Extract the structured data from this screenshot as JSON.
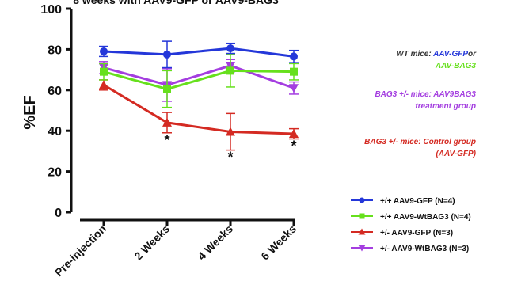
{
  "chart_data": {
    "type": "line",
    "title": "8 weeks with AAV9-GFP or AAV9-BAG3",
    "ylabel": "%EF",
    "xlabel": "",
    "ylim": [
      0,
      100
    ],
    "yticks": [
      0,
      20,
      40,
      60,
      80,
      100
    ],
    "categories": [
      "Pre-injection",
      "2 Weeks",
      "4 Weeks",
      "6 Weeks"
    ],
    "grid": false,
    "legend_position": "bottom-right",
    "series": [
      {
        "name": "+/+ AAV9-GFP (N=4)",
        "color": "#2437d9",
        "marker": "circle",
        "values": [
          79,
          77.5,
          80.5,
          76.5
        ],
        "errors": [
          2.5,
          6.5,
          2.5,
          3
        ]
      },
      {
        "name": "+/+ AAV9-WtBAG3 (N=4)",
        "color": "#66e01c",
        "marker": "square",
        "values": [
          69,
          60.5,
          69.5,
          69
        ],
        "errors": [
          4,
          9,
          8,
          4
        ]
      },
      {
        "name": "+/- AAV9-GFP (N=3)",
        "color": "#d42a22",
        "marker": "triangle-up",
        "values": [
          62.5,
          44,
          39.5,
          38.5
        ],
        "errors": [
          2.5,
          5,
          9,
          2.5
        ]
      },
      {
        "name": "+/- AAV9-WtBAG3 (N=3)",
        "color": "#a43ee0",
        "marker": "triangle-down",
        "values": [
          71,
          62.5,
          72,
          61
        ],
        "errors": [
          3,
          8,
          3,
          3
        ]
      }
    ],
    "significance_markers": [
      "",
      "*",
      "*",
      "*"
    ],
    "annotations": [
      {
        "lines": [
          [
            {
              "text": "WT mice: ",
              "color": "#333333"
            },
            {
              "text": "AAV-GFP",
              "color": "#2437d9"
            },
            {
              "text": "or",
              "color": "#333333"
            }
          ],
          [
            {
              "text": "AAV-BAG3",
              "color": "#66e01c"
            }
          ]
        ]
      },
      {
        "lines": [
          [
            {
              "text": "BAG3 +/- mice: AAV9BAG3",
              "color": "#a43ee0"
            }
          ],
          [
            {
              "text": "treatment group",
              "color": "#a43ee0"
            }
          ]
        ]
      },
      {
        "lines": [
          [
            {
              "text": "BAG3 +/- mice: Control group",
              "color": "#d42a22"
            }
          ],
          [
            {
              "text": "(AAV-GFP)",
              "color": "#d42a22"
            }
          ]
        ]
      }
    ]
  }
}
